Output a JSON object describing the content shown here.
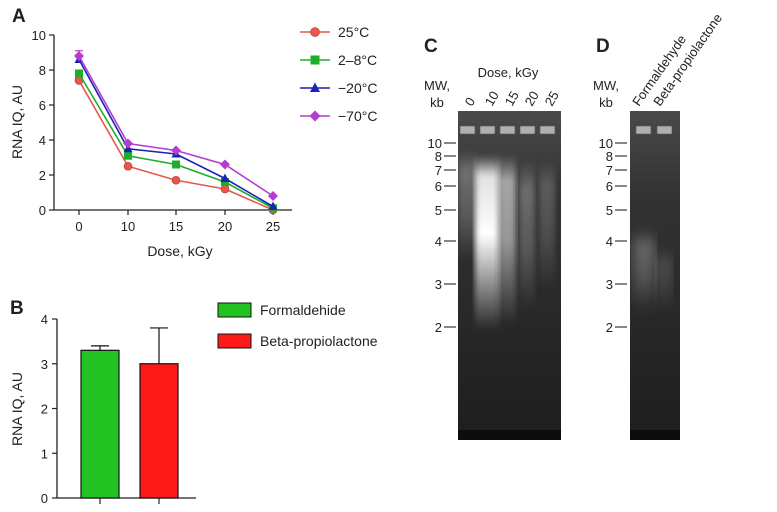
{
  "panels": {
    "A": "A",
    "B": "B",
    "C": "C",
    "D": "D"
  },
  "chart_data": [
    {
      "panel": "A",
      "type": "line",
      "xlabel": "Dose, kGy",
      "ylabel": "RNA IQ, AU",
      "x": [
        0,
        10,
        15,
        20,
        25
      ],
      "x_ticks": [
        "0",
        "10",
        "15",
        "20",
        "25"
      ],
      "y_ticks": [
        "0",
        "2",
        "4",
        "6",
        "8",
        "10"
      ],
      "ylim": [
        0,
        10
      ],
      "legend_position": "right",
      "series": [
        {
          "name": "25°C",
          "color": "#e8574a",
          "marker": "circle",
          "values": [
            7.4,
            2.5,
            1.7,
            1.2,
            0.0
          ],
          "errors": [
            0.15,
            0,
            0,
            0,
            0
          ]
        },
        {
          "name": "2–8°C",
          "color": "#1fae2c",
          "marker": "square",
          "values": [
            7.8,
            3.1,
            2.6,
            1.6,
            0.1
          ],
          "errors": [
            0.15,
            0,
            0,
            0,
            0
          ]
        },
        {
          "name": "−20°C",
          "color": "#1a22b8",
          "marker": "triangle",
          "values": [
            8.6,
            3.5,
            3.2,
            1.8,
            0.2
          ],
          "errors": [
            0.2,
            0,
            0,
            0,
            0
          ]
        },
        {
          "name": "−70°C",
          "color": "#b43ccf",
          "marker": "diamond",
          "values": [
            8.8,
            3.8,
            3.4,
            2.6,
            0.8
          ],
          "errors": [
            0.3,
            0,
            0,
            0,
            0
          ]
        }
      ]
    },
    {
      "panel": "B",
      "type": "bar",
      "ylabel": "RNA IQ, AU",
      "categories": [
        "Formaldehide",
        "Beta-propiolactone"
      ],
      "values": [
        3.3,
        3.0
      ],
      "errors": [
        0.1,
        0.8
      ],
      "colors": [
        "#22c222",
        "#ff1a1a"
      ],
      "y_ticks": [
        "0",
        "1",
        "2",
        "3",
        "4"
      ],
      "ylim": [
        0,
        4
      ],
      "legend_position": "right"
    },
    {
      "panel": "C",
      "type": "gel",
      "mw_label": [
        "MW,",
        "kb"
      ],
      "header": "Dose, kGy",
      "lanes": [
        "0",
        "10",
        "15",
        "20",
        "25"
      ],
      "markers": [
        "10",
        "8",
        "7",
        "6",
        "5",
        "4",
        "3",
        "2"
      ]
    },
    {
      "panel": "D",
      "type": "gel",
      "mw_label": [
        "MW,",
        "kb"
      ],
      "lanes": [
        "Formaldehyde",
        "Beta-propiolactone"
      ],
      "markers": [
        "10",
        "8",
        "7",
        "6",
        "5",
        "4",
        "3",
        "2"
      ]
    }
  ]
}
